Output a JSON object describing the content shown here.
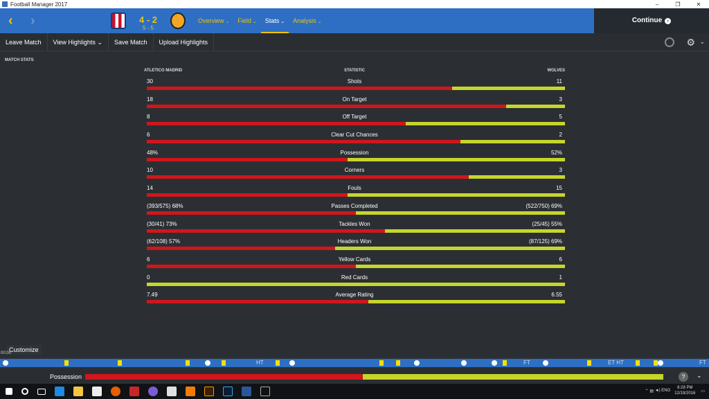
{
  "window": {
    "title": "Football Manager 2017",
    "min": "–",
    "max": "❐",
    "close": "✕"
  },
  "header": {
    "home_team": "Atletico Madrid",
    "away_team": "Wolves",
    "score": "4 - 2",
    "aggregate": "5 - 5",
    "tabs": [
      {
        "label": "Overview",
        "active": false
      },
      {
        "label": "Field",
        "active": false
      },
      {
        "label": "Stats",
        "active": true
      },
      {
        "label": "Analysis",
        "active": false
      }
    ],
    "continue_label": "Continue"
  },
  "actions": [
    "Leave Match",
    "View Highlights",
    "Save Match",
    "Upload Highlights"
  ],
  "section_label": "MATCH STATS",
  "stats_header": {
    "left": "ATLETICO MADRID",
    "mid": "STATISTIC",
    "right": "WOLVES"
  },
  "stats": [
    {
      "left": "30",
      "label": "Shots",
      "right": "11",
      "share": 73
    },
    {
      "left": "18",
      "label": "On Target",
      "right": "3",
      "share": 86
    },
    {
      "left": "8",
      "label": "Off Target",
      "right": "5",
      "share": 62
    },
    {
      "left": "6",
      "label": "Clear Cut Chances",
      "right": "2",
      "share": 75
    },
    {
      "left": "48%",
      "label": "Possession",
      "right": "52%",
      "share": 48
    },
    {
      "left": "10",
      "label": "Corners",
      "right": "3",
      "share": 77
    },
    {
      "left": "14",
      "label": "Fouls",
      "right": "15",
      "share": 48
    },
    {
      "left": "(393/575) 68%",
      "label": "Passes Completed",
      "right": "(522/750) 69%",
      "share": 50
    },
    {
      "left": "(30/41) 73%",
      "label": "Tackles Won",
      "right": "(25/45) 55%",
      "share": 57
    },
    {
      "left": "(62/108) 57%",
      "label": "Headers Won",
      "right": "(87/125) 69%",
      "share": 45
    },
    {
      "left": "6",
      "label": "Yellow Cards",
      "right": "6",
      "share": 50
    },
    {
      "left": "0",
      "label": "Red Cards",
      "right": "1",
      "share": 0
    },
    {
      "left": "7.49",
      "label": "Average Rating",
      "right": "6.55",
      "share": 53
    }
  ],
  "customize_label": "Customize",
  "clock": "00:00",
  "timeline": {
    "marks": [
      "HT",
      "FT",
      "ET HT",
      "FT"
    ]
  },
  "possession_bar": {
    "label": "Possession",
    "home_share": 48
  },
  "taskbar": {
    "time": "8:28 PM",
    "date": "12/19/2016",
    "lang": "ENG"
  }
}
